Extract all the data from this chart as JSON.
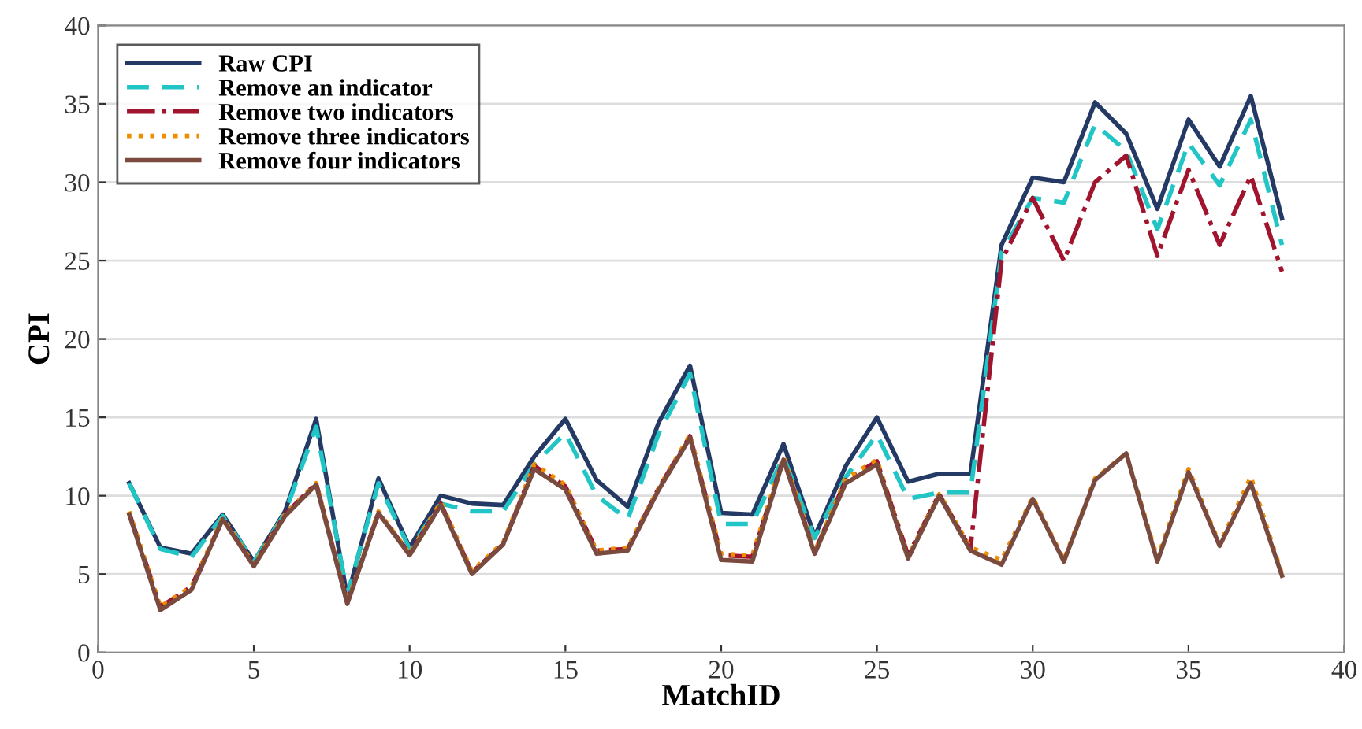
{
  "chart_data": {
    "type": "line",
    "xlabel": "MatchID",
    "ylabel": "CPI",
    "x": [
      1,
      2,
      3,
      4,
      5,
      6,
      7,
      8,
      9,
      10,
      11,
      12,
      13,
      14,
      15,
      16,
      17,
      18,
      19,
      20,
      21,
      22,
      23,
      24,
      25,
      26,
      27,
      28,
      29,
      30,
      31,
      32,
      33,
      34,
      35,
      36,
      37,
      38
    ],
    "series": [
      {
        "name": "Raw CPI",
        "color": "#243a64",
        "line_style": "solid",
        "values": [
          10.8,
          6.7,
          6.3,
          8.8,
          5.8,
          9.0,
          14.9,
          3.5,
          11.1,
          6.7,
          10.0,
          9.5,
          9.4,
          12.5,
          14.9,
          11.0,
          9.3,
          14.7,
          18.3,
          8.9,
          8.8,
          13.3,
          7.4,
          11.9,
          15.0,
          10.9,
          11.4,
          11.4,
          26.0,
          30.3,
          30.0,
          35.1,
          33.1,
          28.3,
          34.0,
          31.0,
          35.5,
          27.7
        ]
      },
      {
        "name": "Remove an indicator",
        "color": "#22c5c5",
        "line_style": "dashed",
        "values": [
          10.8,
          6.6,
          6.1,
          8.7,
          5.8,
          8.9,
          14.4,
          3.7,
          10.8,
          6.6,
          9.5,
          9.0,
          9.0,
          12.0,
          14.0,
          10.0,
          8.5,
          14.0,
          17.8,
          8.2,
          8.2,
          12.5,
          7.3,
          11.2,
          13.9,
          9.8,
          10.2,
          10.2,
          25.5,
          29.0,
          28.7,
          33.7,
          32.0,
          27.0,
          32.5,
          29.8,
          34.0,
          26.0
        ]
      },
      {
        "name": "Remove two indicators",
        "color": "#a0142e",
        "line_style": "dashdot",
        "values": [
          8.9,
          2.9,
          4.2,
          8.5,
          5.6,
          8.8,
          10.8,
          3.2,
          8.9,
          6.3,
          9.5,
          5.1,
          6.9,
          11.9,
          10.6,
          6.5,
          6.6,
          10.5,
          13.8,
          6.2,
          6.1,
          12.4,
          6.4,
          11.0,
          12.2,
          6.2,
          10.1,
          6.6,
          25.0,
          29.0,
          25.0,
          30.0,
          31.7,
          25.3,
          30.8,
          26.0,
          30.4,
          24.3
        ]
      },
      {
        "name": "Remove three indicators",
        "color": "#f08c00",
        "line_style": "dotted",
        "values": [
          9.0,
          2.9,
          4.2,
          8.6,
          5.6,
          8.8,
          10.8,
          3.2,
          9.0,
          6.3,
          9.6,
          5.2,
          7.0,
          12.0,
          10.7,
          6.5,
          6.7,
          10.5,
          13.9,
          6.3,
          6.2,
          12.5,
          6.4,
          11.1,
          12.3,
          6.1,
          10.1,
          6.7,
          5.9,
          9.9,
          5.9,
          11.1,
          12.7,
          6.0,
          11.7,
          6.9,
          11.2,
          5.0
        ]
      },
      {
        "name": "Remove four indicators",
        "color": "#7a4a3e",
        "line_style": "solid",
        "values": [
          8.8,
          2.7,
          4.0,
          8.5,
          5.5,
          8.7,
          10.7,
          3.1,
          8.9,
          6.2,
          9.4,
          5.0,
          6.9,
          11.7,
          10.4,
          6.3,
          6.5,
          10.4,
          13.7,
          5.9,
          5.8,
          12.3,
          6.3,
          10.8,
          12.0,
          6.0,
          10.0,
          6.5,
          5.6,
          9.8,
          5.8,
          11.0,
          12.7,
          5.8,
          11.5,
          6.8,
          10.8,
          4.9
        ]
      }
    ],
    "xlim": [
      0,
      40
    ],
    "xticks": [
      0,
      5,
      10,
      15,
      20,
      25,
      30,
      35,
      40
    ],
    "ylim": [
      0,
      40
    ],
    "yticks": [
      0,
      5,
      10,
      15,
      20,
      25,
      30,
      35,
      40
    ],
    "grid": "y",
    "legend": "top left",
    "marker": "none"
  }
}
